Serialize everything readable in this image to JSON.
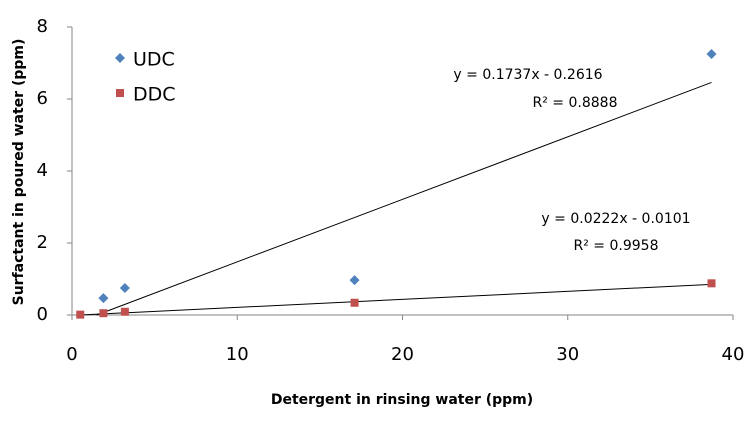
{
  "chart_data": {
    "type": "scatter",
    "x_label": "Detergent in rinsing water (ppm)",
    "y_label": "Surfactant in poured water (ppm)",
    "xlim": [
      0,
      40
    ],
    "xticks": [
      0,
      10,
      20,
      30,
      40
    ],
    "ylim": [
      0,
      8
    ],
    "yticks": [
      0,
      2,
      4,
      6,
      8
    ],
    "legend": "upper left",
    "series": [
      {
        "name": "UDC",
        "color": "#4f81bd",
        "marker": "diamond",
        "x": [
          1.9,
          3.2,
          17.1,
          38.7
        ],
        "values": [
          0.47,
          0.75,
          0.97,
          7.25
        ]
      },
      {
        "name": "DDC",
        "color": "#c0504d",
        "marker": "square",
        "x": [
          0.5,
          1.9,
          3.2,
          17.1,
          38.7
        ],
        "values": [
          0.01,
          0.05,
          0.09,
          0.34,
          0.88
        ]
      }
    ],
    "trendlines": [
      {
        "equation": "y = 0.1737x - 0.2616",
        "r2": "R² = 0.8888",
        "x": [
          1.5,
          38.7
        ],
        "values": [
          0.0,
          6.46
        ]
      },
      {
        "equation": "y = 0.0222x - 0.0101",
        "r2": "R² = 0.9958",
        "x": [
          0.5,
          38.7
        ],
        "values": [
          0.0,
          0.85
        ]
      }
    ]
  }
}
